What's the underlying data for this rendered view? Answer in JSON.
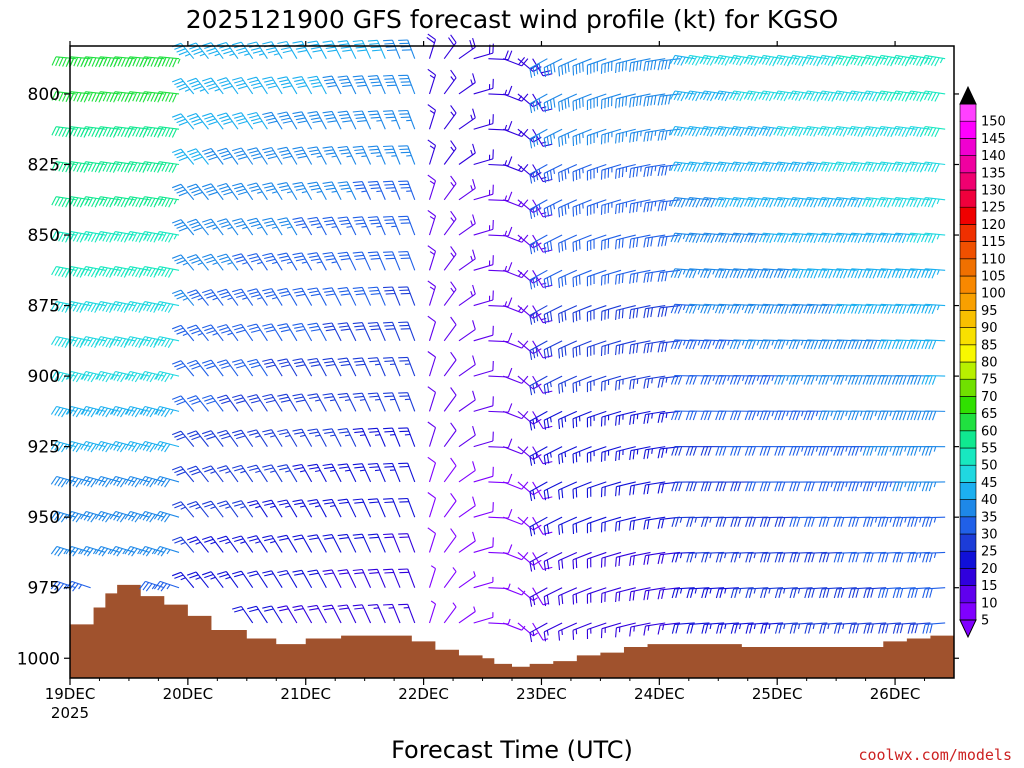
{
  "chart_data": {
    "type": "wind-barb-time-height",
    "title": "2025121900 GFS forecast wind profile (kt) for KGSO",
    "xlabel": "Forecast Time (UTC)",
    "ylabel": "",
    "x_tick_labels": [
      "19DEC",
      "20DEC",
      "21DEC",
      "22DEC",
      "23DEC",
      "24DEC",
      "25DEC",
      "26DEC"
    ],
    "x_year_label": "2025",
    "x_range_days": [
      0,
      7.5
    ],
    "y_tick_values": [
      800,
      825,
      850,
      875,
      900,
      925,
      950,
      975,
      1000
    ],
    "y_range_hpa": [
      783,
      1007
    ],
    "colorbar": {
      "levels": [
        5,
        10,
        15,
        20,
        25,
        30,
        35,
        40,
        45,
        50,
        55,
        60,
        65,
        70,
        75,
        80,
        85,
        90,
        95,
        100,
        105,
        110,
        115,
        120,
        125,
        130,
        135,
        140,
        145,
        150
      ],
      "colors": [
        "#8000ff",
        "#6000ee",
        "#3000dd",
        "#1010d8",
        "#1c3cd8",
        "#2060e8",
        "#1e88e8",
        "#1cb0f0",
        "#20d8e0",
        "#18e8c0",
        "#10e890",
        "#20e040",
        "#30e000",
        "#70e000",
        "#b8f000",
        "#f8f800",
        "#f8e000",
        "#f8c000",
        "#f8a000",
        "#f88800",
        "#f07000",
        "#f05000",
        "#f03000",
        "#f00000",
        "#f0003c",
        "#f00070",
        "#f000a0",
        "#f000d0",
        "#ff00ff",
        "#ff40ff"
      ],
      "units": "kt"
    },
    "wind_field_summary": [
      {
        "period": "19DEC-20DEC",
        "speed_kt_range": [
          25,
          65
        ],
        "direction": "W-NW, strongest aloft"
      },
      {
        "period": "20DEC-22DEC",
        "speed_kt_range": [
          10,
          40
        ],
        "direction": "NW-N"
      },
      {
        "period": "22DEC-23DEC",
        "speed_kt_range": [
          5,
          20
        ],
        "direction": "N-NE, light near surface"
      },
      {
        "period": "23DEC-24DEC",
        "speed_kt_range": [
          10,
          40
        ],
        "direction": "SW-W"
      },
      {
        "period": "24DEC-26DEC",
        "speed_kt_range": [
          10,
          50
        ],
        "direction": "W-WNW, strengthening aloft"
      }
    ],
    "terrain_surface_pressure_hpa": [
      {
        "day": 0.0,
        "p": 988
      },
      {
        "day": 0.2,
        "p": 982
      },
      {
        "day": 0.3,
        "p": 977
      },
      {
        "day": 0.4,
        "p": 974
      },
      {
        "day": 0.6,
        "p": 978
      },
      {
        "day": 0.8,
        "p": 981
      },
      {
        "day": 1.0,
        "p": 985
      },
      {
        "day": 1.2,
        "p": 990
      },
      {
        "day": 1.5,
        "p": 993
      },
      {
        "day": 1.75,
        "p": 995
      },
      {
        "day": 2.0,
        "p": 993
      },
      {
        "day": 2.3,
        "p": 992
      },
      {
        "day": 2.6,
        "p": 992
      },
      {
        "day": 2.9,
        "p": 994
      },
      {
        "day": 3.1,
        "p": 997
      },
      {
        "day": 3.3,
        "p": 999
      },
      {
        "day": 3.5,
        "p": 1000
      },
      {
        "day": 3.6,
        "p": 1002
      },
      {
        "day": 3.75,
        "p": 1003
      },
      {
        "day": 3.9,
        "p": 1002
      },
      {
        "day": 4.1,
        "p": 1001
      },
      {
        "day": 4.3,
        "p": 999
      },
      {
        "day": 4.5,
        "p": 998
      },
      {
        "day": 4.7,
        "p": 996
      },
      {
        "day": 4.9,
        "p": 995
      },
      {
        "day": 5.2,
        "p": 995
      },
      {
        "day": 5.5,
        "p": 995
      },
      {
        "day": 5.7,
        "p": 996
      },
      {
        "day": 6.0,
        "p": 996
      },
      {
        "day": 6.3,
        "p": 996
      },
      {
        "day": 6.6,
        "p": 996
      },
      {
        "day": 6.9,
        "p": 994
      },
      {
        "day": 7.1,
        "p": 993
      },
      {
        "day": 7.3,
        "p": 992
      },
      {
        "day": 7.5,
        "p": 992
      }
    ]
  },
  "credit": "coolwx.com/models",
  "colors": {
    "terrain": "#a0522d",
    "frame": "#000000",
    "background": "#ffffff"
  }
}
